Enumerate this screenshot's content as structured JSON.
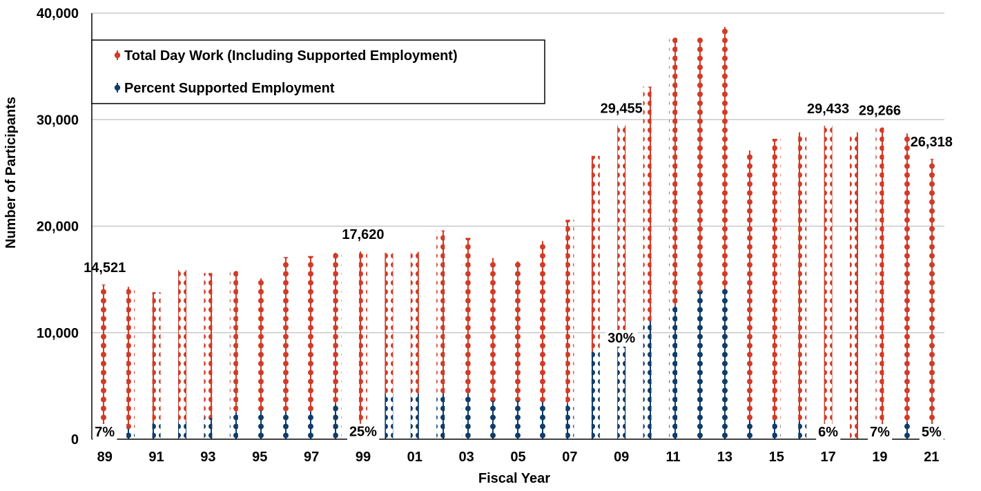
{
  "chart_data": {
    "type": "bar",
    "title": "",
    "xlabel": "Fiscal Year",
    "ylabel": "Number of Participants",
    "ylim": [
      0,
      40000
    ],
    "yticks": [
      "0",
      "10,000",
      "20,000",
      "30,000",
      "40,000"
    ],
    "grid": true,
    "legend_position": "top-left",
    "categories": [
      "89",
      "90",
      "91",
      "92",
      "93",
      "94",
      "95",
      "96",
      "97",
      "98",
      "99",
      "00",
      "01",
      "02",
      "03",
      "04",
      "05",
      "06",
      "07",
      "08",
      "09",
      "10",
      "11",
      "12",
      "13",
      "14",
      "15",
      "16",
      "17",
      "18",
      "19",
      "20",
      "21"
    ],
    "x_tick_labels": [
      "89",
      "91",
      "93",
      "95",
      "97",
      "99",
      "01",
      "03",
      "05",
      "07",
      "09",
      "11",
      "13",
      "15",
      "17",
      "19",
      "21"
    ],
    "series": [
      {
        "name": "Total Day Work (Including Supported Employment)",
        "color": "#d13b27",
        "values": [
          14521,
          14300,
          13800,
          15900,
          15600,
          15800,
          15100,
          17100,
          17200,
          17500,
          17620,
          17500,
          17600,
          19600,
          18900,
          17000,
          16700,
          18600,
          20600,
          26600,
          29455,
          33100,
          37700,
          37700,
          38700,
          27100,
          28200,
          28800,
          29433,
          28800,
          29266,
          28700,
          26318
        ]
      },
      {
        "name": "Percent Supported Employment",
        "color": "#0f3c68",
        "values": [
          0,
          1000,
          1500,
          1700,
          2000,
          2500,
          2700,
          2600,
          2600,
          3300,
          800,
          4300,
          4300,
          4300,
          4300,
          3600,
          3600,
          3500,
          3300,
          8200,
          9600,
          11100,
          12500,
          13900,
          14100,
          1800,
          1800,
          1700,
          0,
          0,
          0,
          1600,
          0
        ]
      }
    ],
    "data_labels": [
      {
        "category": "89",
        "value_label": "14,521",
        "percent_label": "7%"
      },
      {
        "category": "99",
        "value_label": "17,620",
        "percent_label": "25%"
      },
      {
        "category": "09",
        "value_label": "29,455",
        "percent_label": "30%"
      },
      {
        "category": "17",
        "value_label": "29,433",
        "percent_label": "6%"
      },
      {
        "category": "19",
        "value_label": "29,266",
        "percent_label": "7%"
      },
      {
        "category": "21",
        "value_label": "26,318",
        "percent_label": "5%"
      }
    ]
  }
}
